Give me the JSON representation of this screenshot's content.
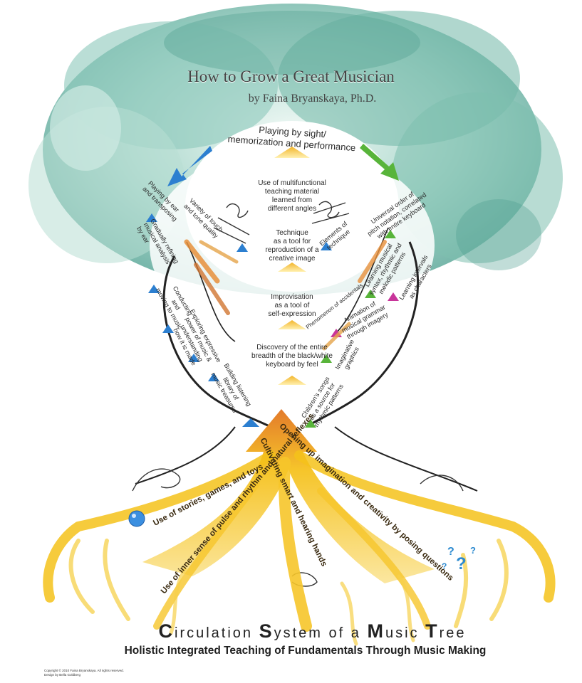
{
  "header": {
    "title": "How to Grow a Great Musician",
    "author": "by Faina Bryanskaya, Ph.D."
  },
  "crown": {
    "top": "Playing by sight/\nmemorization and performance"
  },
  "center_column": [
    "Use of multifunctional\nteaching material\nlearned from\ndifferent angles",
    "Technique\nas a tool for\nreproduction of a\ncreative image",
    "Improvisation\nas a tool of\nself-expression",
    "Discovery of the entire\nbreadth of the black/white\nkeyboard by feel"
  ],
  "left_branch": {
    "playing_by_ear": "Playing by ear\nand transposing",
    "variety_touch": "Variety of touch\nand tone quality",
    "musical_analysis": "Gradually refining\nmusical analysis\nby ear",
    "conducting": "Conducting\nand\nmoving to music",
    "exploring": "Exploring expressive\npower of music &\nunderstanding\nhow it is made",
    "listening_library": "Building listening\nlibrary of\nmusic treasures"
  },
  "right_branch": {
    "universal_order": "Universal order of\npitch notation, correlated\nwith entire keyboard",
    "elements_technique": "Elements of\ntechnique",
    "learning_syntax": "Learning musical\nsyntax, rhythmic and\nmelodic patterns",
    "intervals": "Learning intervals\nas characters",
    "accidentals": "Phenomenon of accidentals",
    "animation": "Animation of\nmusical grammar\nthrough imagery",
    "graphics": "Imaginative\ngraphics",
    "childrens_songs": "Children's songs\nas a source for\nrhythmic patterns"
  },
  "roots": {
    "stories": "Use of stories, games, and toys",
    "pulse": "Use of inner sense of pulse and rhythm and natural reflexes",
    "hands": "Cultivating smart and hearing hands",
    "imagination": "Opening up imagination and creativity by posing questions"
  },
  "footer": {
    "title_words": [
      {
        "cap": "C",
        "rest": "irculation "
      },
      {
        "cap": "S",
        "rest": "ystem "
      },
      {
        "cap": "",
        "rest": "of a "
      },
      {
        "cap": "M",
        "rest": "usic "
      },
      {
        "cap": "T",
        "rest": "ree"
      }
    ],
    "subtitle": "Holistic Integrated Teaching of Fundamentals Through Music Making",
    "copyright": "Copyright © 2010 Faina Bryanskaya. All rights reserved.",
    "design": "Design by Bella Goldberg"
  },
  "colors": {
    "foliage_light": "#bfe3dc",
    "foliage_dark": "#3f9a8c",
    "root_yellow": "#f4c21a",
    "root_orange": "#e7893a",
    "arrow_blue": "#2c7fd0",
    "arrow_green": "#58b43a",
    "arrow_magenta": "#c8359a"
  }
}
